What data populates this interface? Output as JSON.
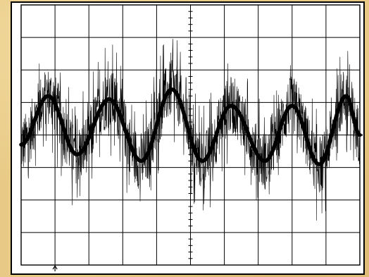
{
  "chart_data": {
    "type": "line",
    "title": "",
    "xlabel": "",
    "ylabel": "",
    "grid": true,
    "grid_divisions": {
      "x": 10,
      "y": 8
    },
    "minor_ticks_per_division": 5,
    "xlim": [
      0,
      10
    ],
    "ylim": [
      -4,
      4
    ],
    "trigger_marker_x": 1.0,
    "trace_color": "#000000",
    "grid_color": "#000000",
    "background_color": "#ffffff",
    "series": [
      {
        "x": [
          0,
          0.8,
          1.65,
          2.6,
          3.55,
          4.45,
          5.35,
          6.2,
          7.2,
          8.0,
          8.8,
          9.6,
          10
        ],
        "values": [
          -0.3,
          1.2,
          -0.6,
          1.1,
          -0.8,
          1.4,
          -0.8,
          0.9,
          -0.8,
          0.9,
          -0.9,
          1.2,
          0.0
        ],
        "noise_amplitude": 0.9,
        "peak_amplitude": 1.8
      }
    ]
  }
}
